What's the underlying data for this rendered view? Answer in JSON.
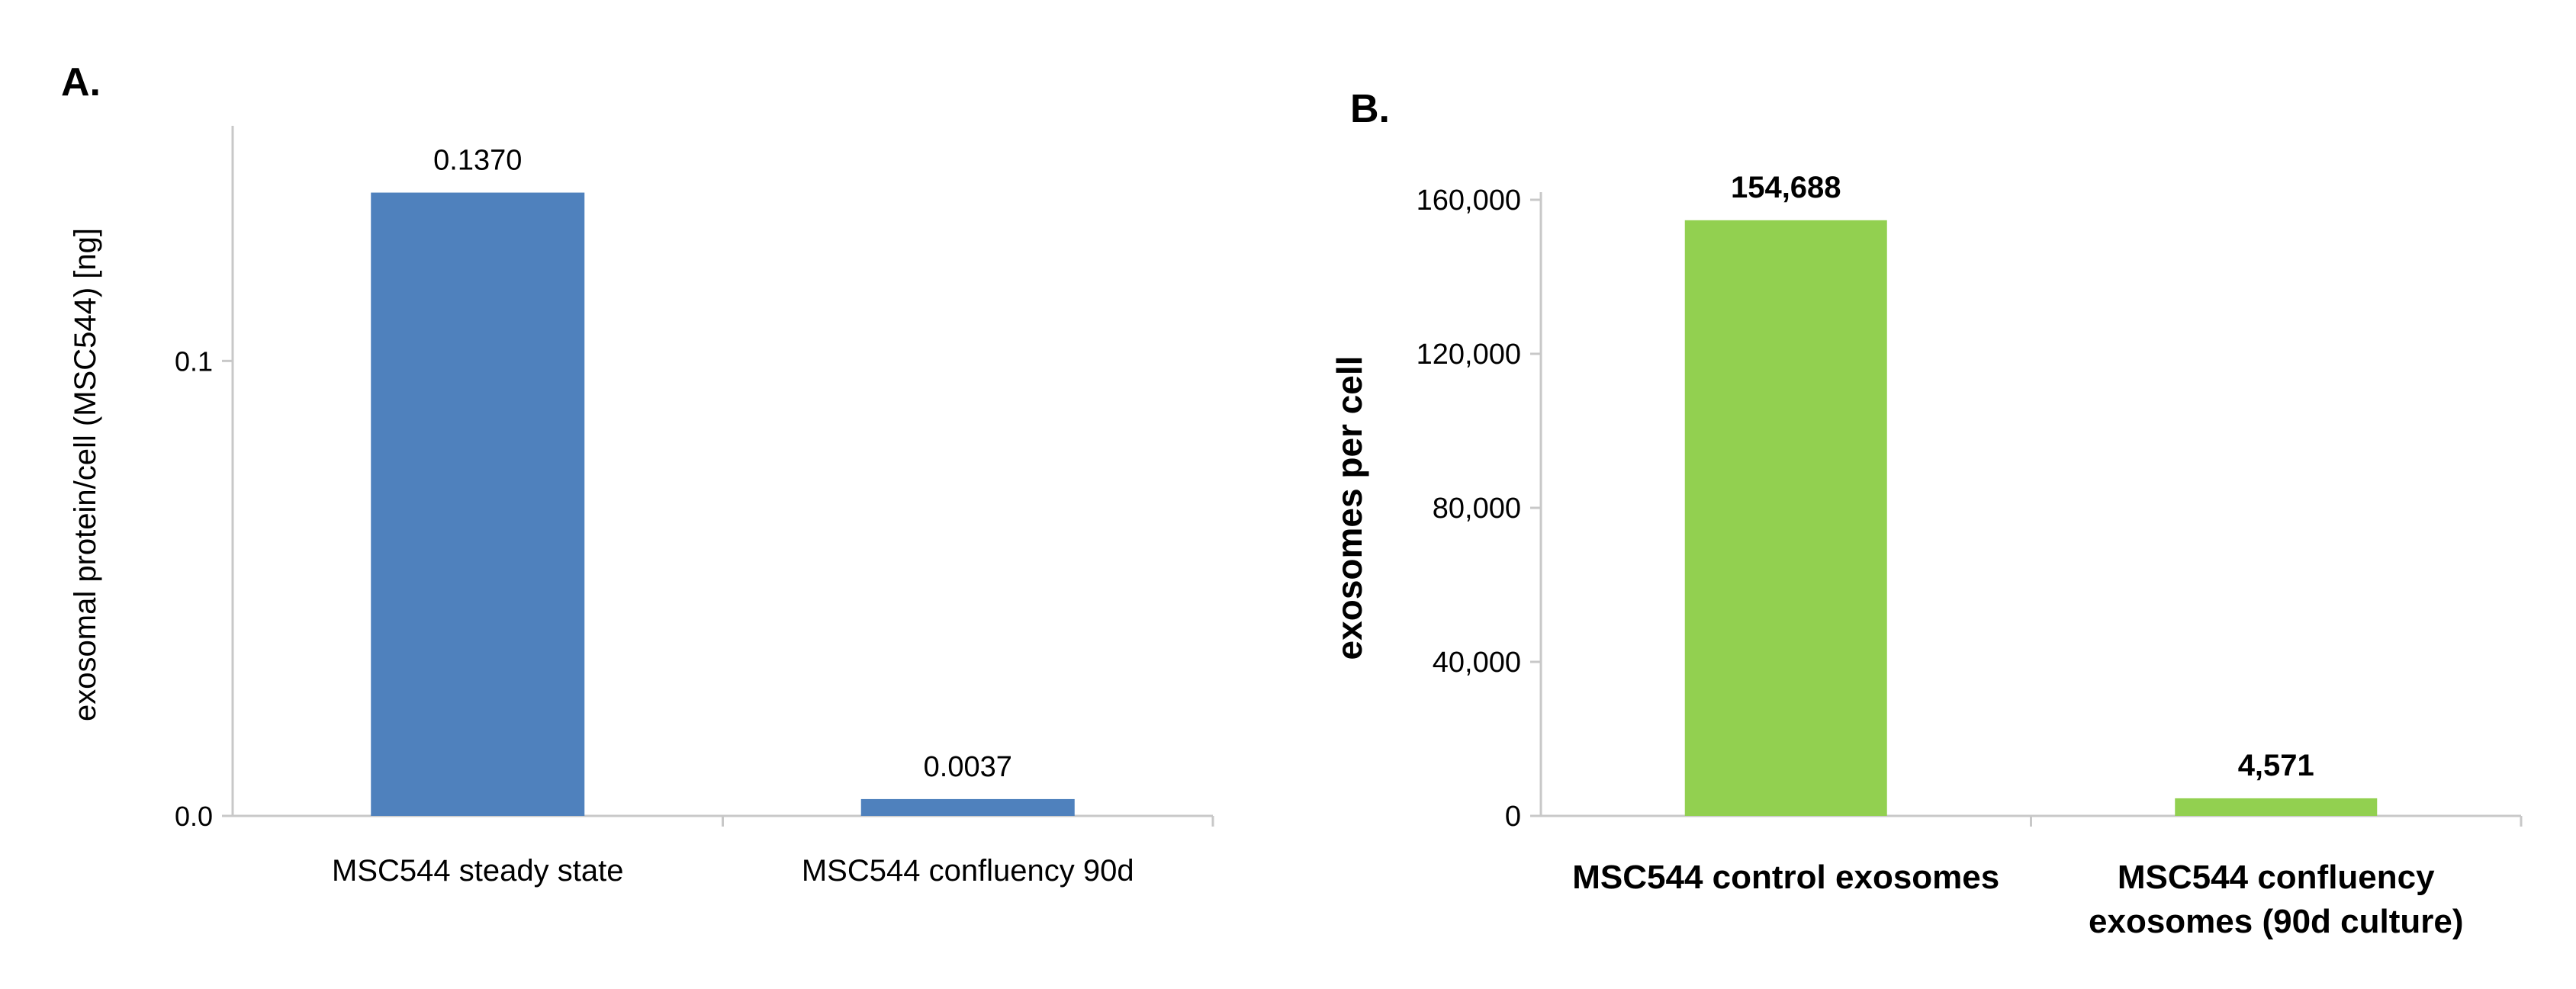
{
  "chart_data": [
    {
      "type": "bar",
      "panel_label": "A.",
      "categories": [
        "MSC544 steady state",
        "MSC544 confluency 90d"
      ],
      "values": [
        0.137,
        0.0037
      ],
      "data_labels": [
        "0.1370",
        "0.0037"
      ],
      "ylabel": "exosomal protein/cell (MSC544) [ng]",
      "xlabel": "",
      "ylim": [
        0,
        0.15
      ],
      "yticks": [
        0,
        0.1
      ],
      "ytick_labels": [
        "0.0",
        "0.1"
      ],
      "colors": [
        "#4f81bd"
      ],
      "grid": false
    },
    {
      "type": "bar",
      "panel_label": "B.",
      "categories": [
        [
          "MSC544 control exosomes"
        ],
        [
          "MSC544 confluency",
          "exosomes (90d culture)"
        ]
      ],
      "values": [
        154688,
        4571
      ],
      "data_labels": [
        "154,688",
        "4,571"
      ],
      "ylabel": "exosomes per cell",
      "xlabel": "",
      "ylim": [
        0,
        160000
      ],
      "yticks": [
        0,
        40000,
        80000,
        120000,
        160000
      ],
      "ytick_labels": [
        "0",
        "40,000",
        "80,000",
        "120,000",
        "160,000"
      ],
      "colors": [
        "#92d050"
      ],
      "grid": false
    }
  ]
}
